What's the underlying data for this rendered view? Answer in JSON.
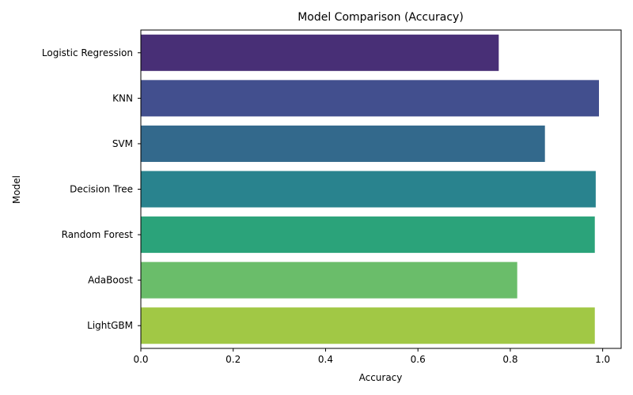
{
  "chart_data": {
    "type": "bar",
    "orientation": "horizontal",
    "title": "Model Comparison (Accuracy)",
    "xlabel": "Accuracy",
    "ylabel": "Model",
    "categories": [
      "Logistic Regression",
      "KNN",
      "SVM",
      "Decision Tree",
      "Random Forest",
      "AdaBoost",
      "LightGBM"
    ],
    "values": [
      0.775,
      0.992,
      0.875,
      0.985,
      0.983,
      0.815,
      0.983
    ],
    "colors": [
      "#482f76",
      "#424f8e",
      "#33698c",
      "#29838e",
      "#2ba37a",
      "#6abd6a",
      "#a1c845"
    ],
    "xlim": [
      0,
      1.04
    ],
    "xticks": [
      0.0,
      0.2,
      0.4,
      0.6,
      0.8,
      1.0
    ],
    "xtick_labels": [
      "0.0",
      "0.2",
      "0.4",
      "0.6",
      "0.8",
      "1.0"
    ],
    "grid": false,
    "legend": "none"
  }
}
